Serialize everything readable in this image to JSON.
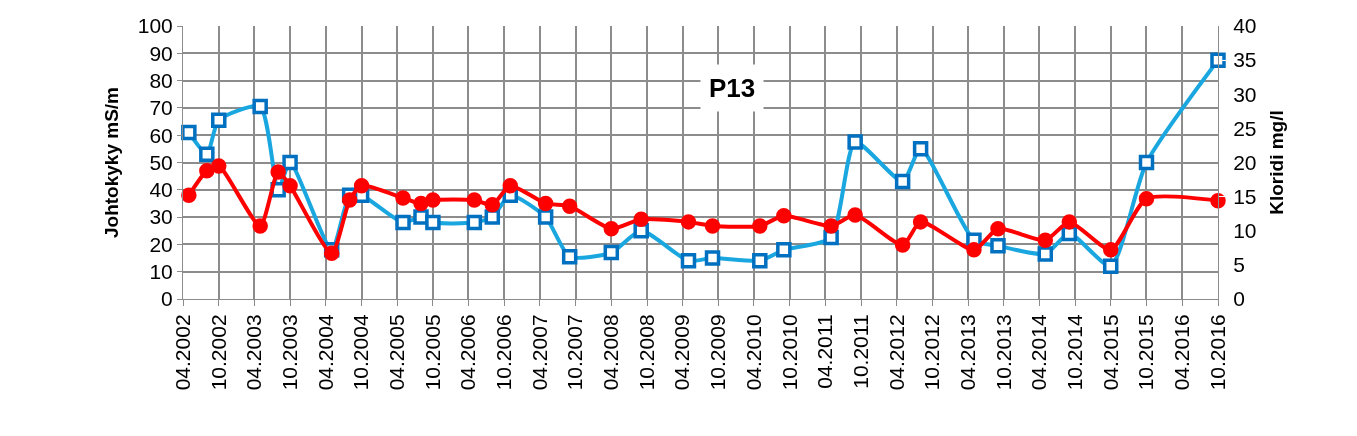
{
  "chart_data": {
    "type": "line",
    "title": "P13",
    "ylabel": "Johtokyky mS/m",
    "y2label": "Kloridi mg/l",
    "x": [
      "2002-05",
      "2002-08",
      "2002-10",
      "2003-05",
      "2003-08",
      "2003-10",
      "2004-05",
      "2004-08",
      "2004-10",
      "2005-05",
      "2005-08",
      "2005-10",
      "2006-05",
      "2006-08",
      "2006-11",
      "2007-05",
      "2007-09",
      "2008-04",
      "2008-09",
      "2009-05",
      "2009-09",
      "2010-05",
      "2010-09",
      "2011-05",
      "2011-09",
      "2012-05",
      "2012-08",
      "2013-05",
      "2013-09",
      "2014-05",
      "2014-09",
      "2015-04",
      "2015-10",
      "2016-10"
    ],
    "series": [
      {
        "color": "#1aa7e0",
        "marker": "square",
        "values": [
          61,
          53,
          65.5,
          70.5,
          40,
          50,
          18,
          38,
          38,
          28,
          30,
          28,
          28,
          30,
          38,
          30,
          15.5,
          17,
          25,
          14,
          15,
          14,
          18,
          22.5,
          57.5,
          43,
          55,
          21.5,
          19.5,
          16.5,
          24,
          12,
          50,
          87.5
        ]
      },
      {
        "color": "#ff0000",
        "marker": "circle",
        "axis": "y2",
        "values": [
          15.2,
          18.8,
          19.5,
          10.7,
          18.6,
          16.6,
          6.7,
          14.5,
          16.6,
          14.8,
          14,
          14.5,
          14.5,
          13.8,
          16.6,
          14,
          13.6,
          10.3,
          11.7,
          11.3,
          10.7,
          10.7,
          12.2,
          10.7,
          12.3,
          7.9,
          11.3,
          7.2,
          10.3,
          8.6,
          11.3,
          7.2,
          14.7,
          14.4
        ]
      }
    ],
    "xlim": [
      "2002-04",
      "2016-10"
    ],
    "xticks": [
      {
        "value": "2002-04",
        "label": "04.2002"
      },
      {
        "value": "2002-10",
        "label": "10.2002"
      },
      {
        "value": "2003-04",
        "label": "04.2003"
      },
      {
        "value": "2003-10",
        "label": "10.2003"
      },
      {
        "value": "2004-04",
        "label": "04.2004"
      },
      {
        "value": "2004-10",
        "label": "10.2004"
      },
      {
        "value": "2005-04",
        "label": "04.2005"
      },
      {
        "value": "2005-10",
        "label": "10.2005"
      },
      {
        "value": "2006-04",
        "label": "04.2006"
      },
      {
        "value": "2006-10",
        "label": "10.2006"
      },
      {
        "value": "2007-04",
        "label": "04.2007"
      },
      {
        "value": "2007-10",
        "label": "10.2007"
      },
      {
        "value": "2008-04",
        "label": "04.2008"
      },
      {
        "value": "2008-10",
        "label": "10.2008"
      },
      {
        "value": "2009-04",
        "label": "04.2009"
      },
      {
        "value": "2009-10",
        "label": "10.2009"
      },
      {
        "value": "2010-04",
        "label": "04.2010"
      },
      {
        "value": "2010-10",
        "label": "10.2010"
      },
      {
        "value": "2011-04",
        "label": "04.2011"
      },
      {
        "value": "2011-10",
        "label": "10.2011"
      },
      {
        "value": "2012-04",
        "label": "04.2012"
      },
      {
        "value": "2012-10",
        "label": "10.2012"
      },
      {
        "value": "2013-04",
        "label": "04.2013"
      },
      {
        "value": "2013-10",
        "label": "10.2013"
      },
      {
        "value": "2014-04",
        "label": "04.2014"
      },
      {
        "value": "2014-10",
        "label": "10.2014"
      },
      {
        "value": "2015-04",
        "label": "04.2015"
      },
      {
        "value": "2015-10",
        "label": "10.2015"
      },
      {
        "value": "2016-04",
        "label": "04.2016"
      },
      {
        "value": "2016-10",
        "label": "10.2016"
      }
    ],
    "ylim": [
      0,
      100
    ],
    "yticks": [
      0,
      10,
      20,
      30,
      40,
      50,
      60,
      70,
      80,
      90,
      100
    ],
    "y2lim": [
      0,
      40
    ],
    "y2ticks": [
      0,
      5,
      10,
      15,
      20,
      25,
      30,
      35,
      40
    ],
    "grid": true,
    "line_style": "solid"
  }
}
